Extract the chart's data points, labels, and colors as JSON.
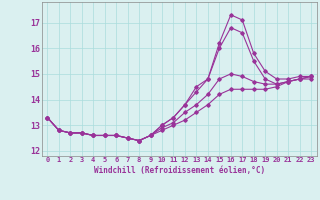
{
  "xlabel": "Windchill (Refroidissement éolien,°C)",
  "ylabel": "",
  "bg_color": "#daf0f0",
  "grid_color": "#aadddd",
  "line_color": "#993399",
  "tick_color": "#993399",
  "spine_color": "#888888",
  "xlim": [
    -0.5,
    23.5
  ],
  "ylim": [
    11.8,
    17.8
  ],
  "yticks": [
    12,
    13,
    14,
    15,
    16,
    17
  ],
  "xticks": [
    0,
    1,
    2,
    3,
    4,
    5,
    6,
    7,
    8,
    9,
    10,
    11,
    12,
    13,
    14,
    15,
    16,
    17,
    18,
    19,
    20,
    21,
    22,
    23
  ],
  "curves": [
    {
      "x": [
        0,
        1,
        2,
        3,
        4,
        5,
        6,
        7,
        8,
        9,
        10,
        11,
        12,
        13,
        14,
        15,
        16,
        17,
        18,
        19,
        20,
        21,
        22,
        23
      ],
      "y": [
        13.3,
        12.8,
        12.7,
        12.7,
        12.6,
        12.6,
        12.6,
        12.5,
        12.4,
        12.6,
        13.0,
        13.3,
        13.8,
        14.5,
        14.8,
        16.2,
        17.3,
        17.1,
        15.8,
        15.1,
        14.8,
        14.8,
        14.9,
        14.9
      ]
    },
    {
      "x": [
        0,
        1,
        2,
        3,
        4,
        5,
        6,
        7,
        8,
        9,
        10,
        11,
        12,
        13,
        14,
        15,
        16,
        17,
        18,
        19,
        20,
        21,
        22,
        23
      ],
      "y": [
        13.3,
        12.8,
        12.7,
        12.7,
        12.6,
        12.6,
        12.6,
        12.5,
        12.4,
        12.6,
        13.0,
        13.3,
        13.8,
        14.3,
        14.8,
        16.0,
        16.8,
        16.6,
        15.5,
        14.8,
        14.6,
        14.7,
        14.8,
        14.8
      ]
    },
    {
      "x": [
        0,
        1,
        2,
        3,
        4,
        5,
        6,
        7,
        8,
        9,
        10,
        11,
        12,
        13,
        14,
        15,
        16,
        17,
        18,
        19,
        20,
        21,
        22,
        23
      ],
      "y": [
        13.3,
        12.8,
        12.7,
        12.7,
        12.6,
        12.6,
        12.6,
        12.5,
        12.4,
        12.6,
        12.9,
        13.1,
        13.5,
        13.8,
        14.2,
        14.8,
        15.0,
        14.9,
        14.7,
        14.6,
        14.6,
        14.7,
        14.8,
        14.9
      ]
    },
    {
      "x": [
        0,
        1,
        2,
        3,
        4,
        5,
        6,
        7,
        8,
        9,
        10,
        11,
        12,
        13,
        14,
        15,
        16,
        17,
        18,
        19,
        20,
        21,
        22,
        23
      ],
      "y": [
        13.3,
        12.8,
        12.7,
        12.7,
        12.6,
        12.6,
        12.6,
        12.5,
        12.4,
        12.6,
        12.8,
        13.0,
        13.2,
        13.5,
        13.8,
        14.2,
        14.4,
        14.4,
        14.4,
        14.4,
        14.5,
        14.7,
        14.8,
        14.9
      ]
    }
  ]
}
